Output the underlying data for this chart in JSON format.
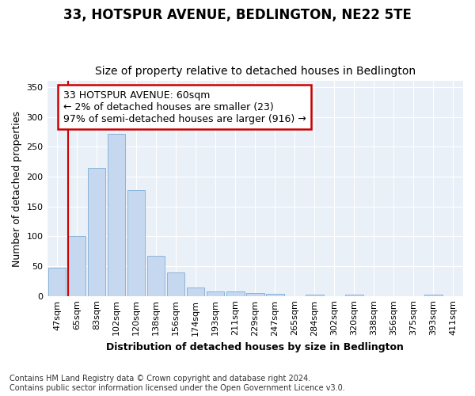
{
  "title": "33, HOTSPUR AVENUE, BEDLINGTON, NE22 5TE",
  "subtitle": "Size of property relative to detached houses in Bedlington",
  "xlabel": "Distribution of detached houses by size in Bedlington",
  "ylabel": "Number of detached properties",
  "categories": [
    "47sqm",
    "65sqm",
    "83sqm",
    "102sqm",
    "120sqm",
    "138sqm",
    "156sqm",
    "174sqm",
    "193sqm",
    "211sqm",
    "229sqm",
    "247sqm",
    "265sqm",
    "284sqm",
    "302sqm",
    "320sqm",
    "338sqm",
    "356sqm",
    "375sqm",
    "393sqm",
    "411sqm"
  ],
  "values": [
    48,
    101,
    215,
    272,
    178,
    67,
    40,
    14,
    7,
    7,
    5,
    4,
    0,
    2,
    0,
    2,
    0,
    0,
    0,
    2,
    0
  ],
  "bar_color": "#c5d8f0",
  "bar_edge_color": "#8ab4d8",
  "annotation_text_line1": "33 HOTSPUR AVENUE: 60sqm",
  "annotation_text_line2": "← 2% of detached houses are smaller (23)",
  "annotation_text_line3": "97% of semi-detached houses are larger (916) →",
  "annotation_box_color": "#ffffff",
  "annotation_box_edge": "#cc0000",
  "marker_line_color": "#cc0000",
  "ylim": [
    0,
    360
  ],
  "yticks": [
    0,
    50,
    100,
    150,
    200,
    250,
    300,
    350
  ],
  "footnote": "Contains HM Land Registry data © Crown copyright and database right 2024.\nContains public sector information licensed under the Open Government Licence v3.0.",
  "background_color": "#ffffff",
  "plot_background_color": "#eaf0f8",
  "grid_color": "#ffffff",
  "title_fontsize": 12,
  "subtitle_fontsize": 10,
  "axis_label_fontsize": 9,
  "tick_fontsize": 8,
  "annotation_fontsize": 9,
  "footnote_fontsize": 7
}
